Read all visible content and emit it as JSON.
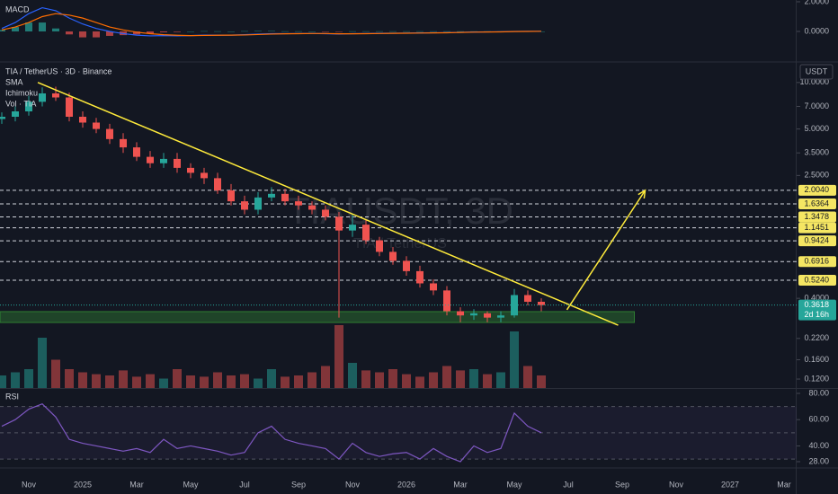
{
  "chart_data": [
    {
      "type": "macd",
      "title": "MACD",
      "macd": {
        "color": "#2962ff",
        "values": [
          0.2,
          0.6,
          1.2,
          1.6,
          1.4,
          0.9,
          0.5,
          0.2,
          0.0,
          -0.15,
          -0.25,
          -0.3,
          -0.28,
          -0.3,
          -0.28,
          -0.25,
          -0.25,
          -0.25,
          -0.22,
          -0.18,
          -0.15,
          -0.15,
          -0.14,
          -0.14,
          -0.15,
          -0.18,
          -0.15,
          -0.14,
          -0.13,
          -0.12,
          -0.11,
          -0.1,
          -0.09,
          -0.08,
          -0.06,
          -0.04,
          -0.03,
          -0.02,
          0.0,
          0.01,
          0.01
        ]
      },
      "signal": {
        "color": "#ff6d00",
        "values": [
          0.1,
          0.3,
          0.6,
          1.0,
          1.2,
          1.1,
          0.9,
          0.6,
          0.3,
          0.1,
          -0.05,
          -0.15,
          -0.22,
          -0.26,
          -0.28,
          -0.27,
          -0.26,
          -0.25,
          -0.24,
          -0.21,
          -0.18,
          -0.16,
          -0.15,
          -0.14,
          -0.14,
          -0.16,
          -0.16,
          -0.15,
          -0.14,
          -0.13,
          -0.12,
          -0.11,
          -0.1,
          -0.09,
          -0.07,
          -0.05,
          -0.04,
          -0.03,
          -0.01,
          0.0,
          0.01
        ]
      },
      "histogram": {
        "colors": [
          "#26a69a",
          "#ef5350"
        ],
        "values": [
          0.1,
          0.3,
          0.6,
          0.6,
          0.2,
          -0.2,
          -0.4,
          -0.4,
          -0.3,
          -0.25,
          -0.2,
          -0.15,
          -0.06,
          -0.04,
          0.0,
          0.02,
          0.01,
          0.0,
          0.02,
          0.03,
          0.03,
          0.01,
          0.01,
          0.0,
          -0.01,
          -0.02,
          0.01,
          0.01,
          0.01,
          0.01,
          0.01,
          0.01,
          0.01,
          0.01,
          0.01,
          0.01,
          0.01,
          0.01,
          0.01,
          0.01,
          0.0
        ]
      },
      "ylim": [
        -2.0,
        2.12
      ],
      "yticks": [
        {
          "value": 2,
          "label": "2.0000"
        },
        {
          "value": 0,
          "label": "0.0000"
        }
      ]
    },
    {
      "type": "candlestick",
      "title": "TIA / TetherUS · 3D · Binance",
      "indicators": [
        "SMA",
        "Ichimoku",
        "Vol · TIA"
      ],
      "axis_unit": "USDT",
      "watermark": "TIAUSDT, 3D",
      "watermark_subtitle": "TIA / TetherUS",
      "log_scale": true,
      "categories": [
        null,
        null,
        "Nov",
        null,
        null,
        null,
        "2025",
        null,
        null,
        null,
        "Mar",
        null,
        null,
        null,
        "May",
        null,
        null,
        null,
        "Jul",
        null,
        null,
        null,
        "Sep",
        null,
        null,
        null,
        "Nov",
        null,
        null,
        null,
        "2026",
        null,
        null,
        null,
        "Mar",
        null,
        null,
        null,
        "May",
        null,
        null,
        null,
        "Jul",
        null,
        null,
        null,
        "Sep",
        null,
        null,
        null,
        "Nov",
        null,
        null,
        null,
        "2027",
        null,
        null,
        null,
        "Mar"
      ],
      "open": [
        5.8,
        6.0,
        6.5,
        7.5,
        8.5,
        8.0,
        6.0,
        5.5,
        5.0,
        4.3,
        3.8,
        3.3,
        3.0,
        3.2,
        2.8,
        2.6,
        2.4,
        2.0,
        1.7,
        1.5,
        1.8,
        1.9,
        1.7,
        1.6,
        1.5,
        1.35,
        1.1,
        1.2,
        0.95,
        0.8,
        0.7,
        0.6,
        0.5,
        0.45,
        0.33,
        0.31,
        0.32,
        0.3,
        0.31,
        0.42,
        0.38,
        null,
        null,
        null,
        null,
        null,
        null,
        null,
        null,
        null,
        null,
        null,
        null,
        null,
        null,
        null,
        null,
        null,
        null
      ],
      "high": [
        6.4,
        7.0,
        8.2,
        9.3,
        9.4,
        8.6,
        6.5,
        5.9,
        5.4,
        4.7,
        4.1,
        3.6,
        3.5,
        3.5,
        3.0,
        2.8,
        2.6,
        2.2,
        1.85,
        1.95,
        2.1,
        2.05,
        1.85,
        1.7,
        1.6,
        1.45,
        1.4,
        1.3,
        1.0,
        0.86,
        0.75,
        0.65,
        0.53,
        0.48,
        0.35,
        0.34,
        0.33,
        0.33,
        0.46,
        0.45,
        0.4,
        null,
        null,
        null,
        null,
        null,
        null,
        null,
        null,
        null,
        null,
        null,
        null,
        null,
        null,
        null,
        null,
        null,
        null
      ],
      "low": [
        5.4,
        5.6,
        6.1,
        7.0,
        7.6,
        5.6,
        5.1,
        4.7,
        4.0,
        3.5,
        3.1,
        2.8,
        2.8,
        2.6,
        2.4,
        2.2,
        1.9,
        1.6,
        1.4,
        1.4,
        1.7,
        1.6,
        1.5,
        1.4,
        1.28,
        0.3,
        1.0,
        0.9,
        0.75,
        0.66,
        0.56,
        0.47,
        0.42,
        0.31,
        0.28,
        0.29,
        0.28,
        0.28,
        0.3,
        0.36,
        0.33,
        null,
        null,
        null,
        null,
        null,
        null,
        null,
        null,
        null,
        null,
        null,
        null,
        null,
        null,
        null,
        null,
        null,
        null
      ],
      "close": [
        6.0,
        6.5,
        7.5,
        8.5,
        8.0,
        6.0,
        5.5,
        5.0,
        4.3,
        3.8,
        3.3,
        3.0,
        3.2,
        2.8,
        2.6,
        2.4,
        2.0,
        1.7,
        1.5,
        1.8,
        1.9,
        1.7,
        1.6,
        1.5,
        1.35,
        1.1,
        1.2,
        0.95,
        0.8,
        0.7,
        0.6,
        0.5,
        0.45,
        0.33,
        0.31,
        0.32,
        0.3,
        0.31,
        0.42,
        0.38,
        0.3618,
        null,
        null,
        null,
        null,
        null,
        null,
        null,
        null,
        null,
        null,
        null,
        null,
        null,
        null,
        null,
        null,
        null,
        null
      ],
      "volume": [
        20,
        25,
        30,
        80,
        45,
        30,
        25,
        22,
        20,
        28,
        18,
        22,
        15,
        30,
        20,
        18,
        25,
        20,
        22,
        15,
        30,
        18,
        20,
        25,
        35,
        100,
        40,
        28,
        25,
        30,
        22,
        18,
        25,
        35,
        28,
        30,
        22,
        25,
        90,
        35,
        20,
        null,
        null,
        null,
        null,
        null,
        null,
        null,
        null,
        null,
        null,
        null,
        null,
        null,
        null,
        null,
        null,
        null,
        null
      ],
      "volume_ylim": [
        0,
        110
      ],
      "colors": {
        "up": "#26a69a",
        "down": "#ef5350"
      },
      "ylim": [
        0.105,
        13.4
      ],
      "yticks": [
        {
          "value": 10,
          "label": "10.0000"
        },
        {
          "value": 7,
          "label": "7.0000"
        },
        {
          "value": 5,
          "label": "5.0000"
        },
        {
          "value": 3.5,
          "label": "3.5000"
        },
        {
          "value": 2.5,
          "label": "2.5000"
        },
        {
          "value": 0.4,
          "label": "0.4000"
        },
        {
          "value": 0.22,
          "label": "0.2200"
        },
        {
          "value": 0.16,
          "label": "0.1600"
        },
        {
          "value": 0.12,
          "label": "0.1200"
        }
      ],
      "levels": [
        {
          "value": 2.004,
          "label": "2.0040"
        },
        {
          "value": 1.6364,
          "label": "1.6364"
        },
        {
          "value": 1.3478,
          "label": "1.3478"
        },
        {
          "value": 1.1451,
          "label": "1.1451"
        },
        {
          "value": 0.9424,
          "label": "0.9424"
        },
        {
          "value": 0.6916,
          "label": "0.6916"
        },
        {
          "value": 0.524,
          "label": "0.5240"
        }
      ],
      "level_color": "#f5e663",
      "last_price": {
        "value": 0.3618,
        "label": "0.3618",
        "countdown": "2d 16h",
        "color": "#26a69a"
      },
      "zone": {
        "x": [
          -0.13,
          46.9
        ],
        "y": [
          0.279,
          0.328
        ],
        "color": "#2e7d32"
      },
      "trendline": {
        "x": [
          2.67,
          45.7
        ],
        "y": [
          10,
          0.268
        ],
        "color": "#ffeb3b"
      },
      "arrow": {
        "x": [
          41.9,
          47.7
        ],
        "y": [
          0.337,
          2.0
        ],
        "color": "#ffeb3b"
      }
    },
    {
      "type": "rsi",
      "title": "RSI",
      "color": "#7e57c2",
      "values": [
        55,
        60,
        68,
        72,
        62,
        45,
        42,
        40,
        38,
        36,
        38,
        35,
        45,
        38,
        40,
        38,
        36,
        33,
        35,
        50,
        55,
        45,
        42,
        40,
        38,
        30,
        42,
        35,
        32,
        34,
        35,
        30,
        38,
        32,
        28,
        40,
        35,
        38,
        65,
        55,
        50
      ],
      "levels": [
        70,
        50,
        30
      ],
      "ylim": [
        23.9,
        83.4
      ],
      "yticks": [
        {
          "value": 80,
          "label": "80.00"
        },
        {
          "value": 60,
          "label": "60.00"
        },
        {
          "value": 40,
          "label": "40.00"
        },
        {
          "value": 28,
          "label": "28.00"
        }
      ]
    }
  ]
}
